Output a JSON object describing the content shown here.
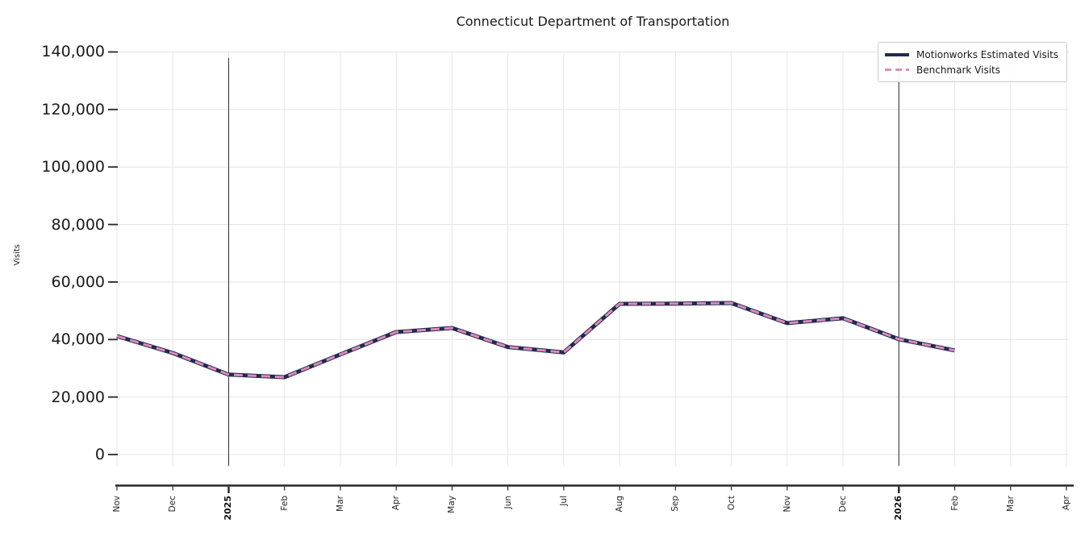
{
  "title": "Connecticut Department of Transportation",
  "y_axis": {
    "label": "Visits",
    "tick_values": [
      0,
      20000,
      40000,
      60000,
      80000,
      100000,
      120000,
      140000
    ],
    "tick_labels": [
      "0",
      "20,000",
      "40,000",
      "60,000",
      "80,000",
      "100,000",
      "120,000",
      "140,000"
    ]
  },
  "x_axis": {
    "tick_labels": [
      "Nov",
      "Dec",
      "2025",
      "Feb",
      "Mar",
      "Apr",
      "May",
      "Jun",
      "Jul",
      "Aug",
      "Sep",
      "Oct",
      "Nov",
      "Dec",
      "2026",
      "Feb",
      "Mar",
      "Apr"
    ],
    "bold_labels": [
      "2025",
      "2026"
    ]
  },
  "legend": {
    "items": [
      {
        "label": "Motionworks Estimated Visits",
        "color": "#222a52",
        "style": "solid"
      },
      {
        "label": "Benchmark Visits",
        "color": "#de8db9",
        "style": "dashed"
      }
    ]
  },
  "chart_data": {
    "type": "line",
    "title": "Connecticut Department of Transportation",
    "xlabel": "",
    "ylabel": "Visits",
    "ylim": [
      0,
      140000
    ],
    "grid": true,
    "legend_position": "upper right",
    "x": [
      "Nov 2024",
      "Dec 2024",
      "Jan 2025",
      "Feb 2025",
      "Mar 2025",
      "Apr 2025",
      "May 2025",
      "Jun 2025",
      "Jul 2025",
      "Aug 2025",
      "Sep 2025",
      "Oct 2025",
      "Nov 2025",
      "Dec 2025",
      "Jan 2026",
      "Feb 2026"
    ],
    "x_axis_extends_to": "Apr 2026",
    "year_marker_lines": [
      "2025",
      "2026"
    ],
    "series": [
      {
        "name": "Motionworks Estimated Visits",
        "color": "#222a52",
        "style": "solid",
        "values": [
          41200,
          35300,
          27800,
          26900,
          34800,
          42600,
          44000,
          37400,
          35500,
          52400,
          52500,
          52700,
          45700,
          47400,
          40100,
          36200
        ]
      },
      {
        "name": "Benchmark Visits",
        "color": "#de8db9",
        "style": "dashed",
        "values": [
          41200,
          35300,
          27800,
          26900,
          34800,
          42600,
          44000,
          37400,
          35500,
          52400,
          52500,
          52700,
          45700,
          47400,
          40100,
          36200
        ]
      }
    ]
  }
}
